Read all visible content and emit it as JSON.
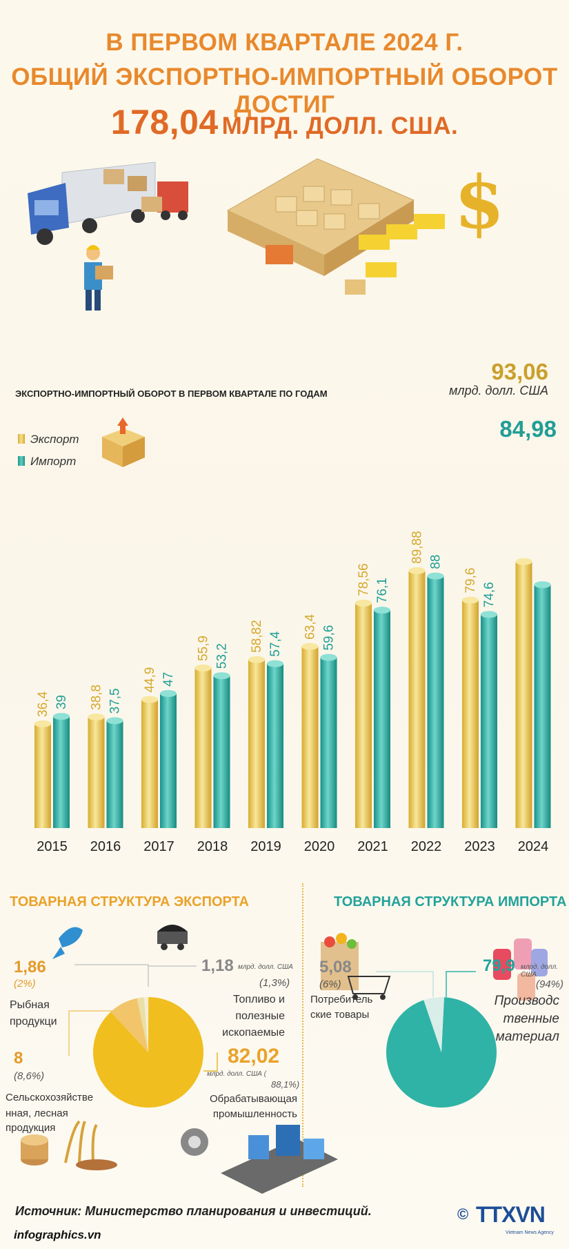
{
  "header": {
    "line1": "В ПЕРВОМ КВАРТАЛЕ 2024 Г.",
    "line2": "ОБЩИЙ ЭКСПОРТНО-ИМПОРТНЫЙ ОБОРОТ ДОСТИГ",
    "total": "178,04",
    "total_unit": "МЛРД. ДОЛЛ. США."
  },
  "chart_data": [
    {
      "type": "bar",
      "title": "ЭКСПОРТНО-ИМПОРТНЫЙ ОБОРОТ В ПЕРВОМ КВАРТАЛЕ ПО ГОДАМ",
      "categories": [
        "2015",
        "2016",
        "2017",
        "2018",
        "2019",
        "2020",
        "2021",
        "2022",
        "2023",
        "2024"
      ],
      "series": [
        {
          "name": "Экспорт",
          "color": "#e9c33a",
          "values": [
            36.4,
            38.8,
            44.9,
            55.9,
            58.82,
            63.4,
            78.56,
            89.88,
            79.6,
            93.06
          ],
          "labels": [
            "36,4",
            "38,8",
            "44,9",
            "55,9",
            "58,82",
            "63,4",
            "78,56",
            "89,88",
            "79,6",
            "93,06"
          ]
        },
        {
          "name": "Импорт",
          "color": "#2fb0a4",
          "values": [
            39,
            37.5,
            47,
            53.2,
            57.4,
            59.6,
            76.1,
            88,
            74.6,
            84.98
          ],
          "labels": [
            "39",
            "37,5",
            "47",
            "53,2",
            "57,4",
            "59,6",
            "76,1",
            "88",
            "74,6",
            "84,98"
          ]
        }
      ],
      "latest_export": {
        "value": "93,06",
        "unit": "млрд. долл. США"
      },
      "latest_import": {
        "value": "84,98"
      }
    },
    {
      "type": "pie",
      "title": "ТОВАРНАЯ СТРУКТУРА ЭКСПОРТА",
      "slices": [
        {
          "name": "Обрабатывающая промышленность",
          "value": 82.02,
          "percent": 88.1,
          "color": "#f0be1f"
        },
        {
          "name": "Сельскохозяйственная, лесная продукция",
          "value": 8,
          "percent": 8.6,
          "color": "#f2c56a"
        },
        {
          "name": "Рыбная продукция",
          "value": 1.86,
          "percent": 2,
          "color": "#eadfa6"
        },
        {
          "name": "Топливо и полезные ископаемые",
          "value": 1.18,
          "percent": 1.3,
          "color": "#f6eed2"
        }
      ]
    },
    {
      "type": "pie",
      "title": "ТОВАРНАЯ СТРУКТУРА ИМПОРТА",
      "slices": [
        {
          "name": "Производственные материалы",
          "value": 79.9,
          "percent": 94,
          "color": "#2fb3a6"
        },
        {
          "name": "Потребительские товары",
          "value": 5.08,
          "percent": 6,
          "color": "#d9ede9"
        }
      ]
    }
  ],
  "export_struct": {
    "title": "ТОВАРНАЯ СТРУКТУРА ЭКСПОРТА",
    "fish": {
      "value": "1,86",
      "pct": "(2%)",
      "label1": "Рыбная",
      "label2": "продукци"
    },
    "fuel": {
      "value": "1,18",
      "unit": "млрд. долл. США",
      "pct": "(1,3%)",
      "label1": "Топливо и",
      "label2": "полезные",
      "label3": "ископаемые"
    },
    "agri": {
      "value": "8",
      "pct": "(8,6%)",
      "label1": "Сельскохозяйстве",
      "label2": "нная, лесная",
      "label3": "продукция"
    },
    "manuf": {
      "value": "82,02",
      "unit": "млрд. долл. США (",
      "pct": "88,1%)",
      "label1": "Обрабатывающая",
      "label2": "промышленность"
    }
  },
  "import_struct": {
    "title": "ТОВАРНАЯ СТРУКТУРА ИМПОРТА",
    "consumer": {
      "value": "5,08",
      "pct": "(6%)",
      "label1": "Потребитель",
      "label2": "ские товары"
    },
    "materials": {
      "value": "79,9",
      "unit": "млрд. долл. США",
      "pct": "(94%)",
      "label1": "Производс",
      "label2": "твенные",
      "label3": "материал"
    }
  },
  "footer": {
    "source": "Источник: Министерство планирования и инвестиций.",
    "site": "infographics.vn",
    "logo": "TTXVN",
    "logo_sub": "Vietnam News Agency",
    "copyright": "©"
  }
}
